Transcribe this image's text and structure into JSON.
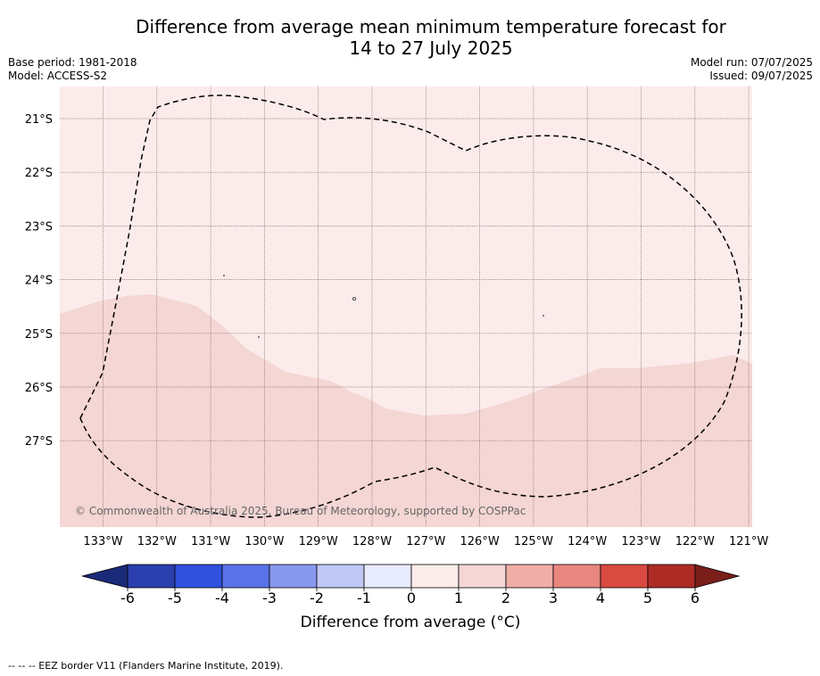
{
  "title": {
    "line1": "Difference from average mean minimum temperature forecast for",
    "line2": "14 to 27 July 2025"
  },
  "meta": {
    "base_period": "Base period: 1981-2018",
    "model": "Model: ACCESS-S2",
    "model_run": "Model run: 07/07/2025",
    "issued": "Issued: 09/07/2025"
  },
  "map": {
    "latitude_labels": [
      "21°S",
      "22°S",
      "23°S",
      "24°S",
      "25°S",
      "26°S",
      "27°S"
    ],
    "longitude_labels": [
      "133°W",
      "132°W",
      "131°W",
      "130°W",
      "129°W",
      "128°W",
      "127°W",
      "126°W",
      "125°W",
      "124°W",
      "123°W",
      "122°W",
      "121°W"
    ],
    "copyright": "© Commonwealth of Australia 2025, Bureau of Meteorology, supported by COSPPac",
    "zones": [
      {
        "range": "0 to 1",
        "color": "#fbeceb"
      },
      {
        "range": "1 to 2",
        "color": "#f4d6d4"
      }
    ]
  },
  "colorbar": {
    "ticks": [
      "-6",
      "-5",
      "-4",
      "-3",
      "-2",
      "-1",
      "0",
      "1",
      "2",
      "3",
      "4",
      "5",
      "6"
    ],
    "colors": [
      "#2c3fae",
      "#3150de",
      "#5a72e8",
      "#8898ee",
      "#c0c8f5",
      "#e8ebfb",
      "#fbeceb",
      "#f4d6d4",
      "#efada8",
      "#e98680",
      "#d94a40",
      "#ad2b25"
    ],
    "under_color": "#1a2a78",
    "over_color": "#7a1e1a",
    "label": "Difference from average (",
    "label_unit": "°C",
    "label_close": ")"
  },
  "footnote": "-- -- -- EEZ border V11 (Flanders Marine Institute, 2019)."
}
